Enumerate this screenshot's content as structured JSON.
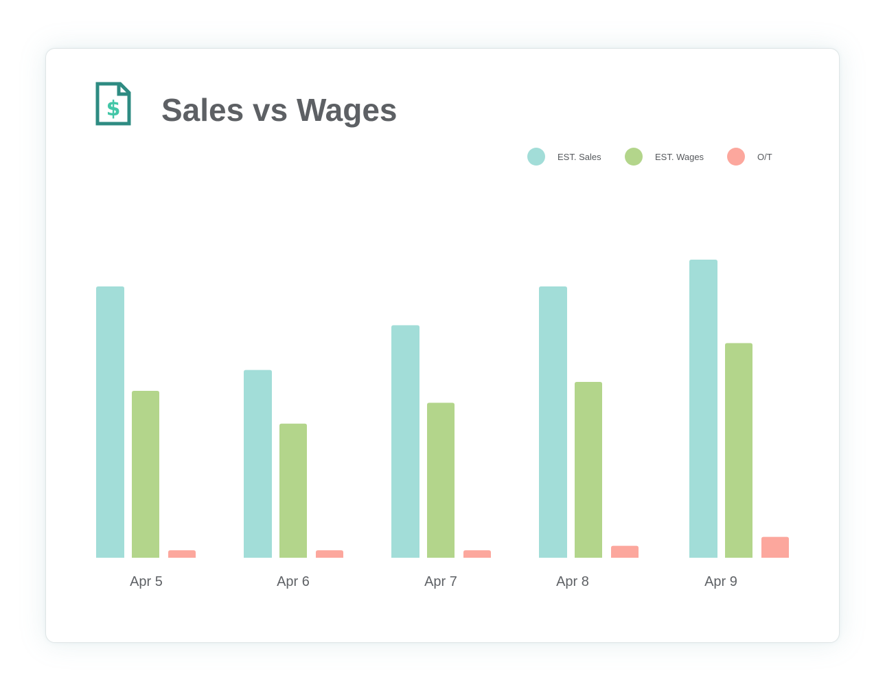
{
  "header": {
    "title": "Sales vs Wages",
    "icon": "dollar-document-icon",
    "icon_color": "#2e8b82",
    "icon_accent": "#42c6a7"
  },
  "legend": {
    "placement": "top-right",
    "items": [
      {
        "label": "EST. Sales",
        "color": "#a2ddd8"
      },
      {
        "label": "EST. Wages",
        "color": "#b3d58b"
      },
      {
        "label": "O/T",
        "color": "#fca79d"
      }
    ]
  },
  "chart_data": {
    "type": "bar",
    "title": "Sales vs Wages",
    "xlabel": "",
    "ylabel": "",
    "grid": false,
    "legend_position": "top-right",
    "categories": [
      "Apr 5",
      "Apr 6",
      "Apr 7",
      "Apr 8",
      "Apr 9"
    ],
    "series": [
      {
        "name": "EST. Sales",
        "color": "#a2ddd8",
        "values": [
          91,
          63,
          78,
          91,
          100
        ]
      },
      {
        "name": "EST. Wages",
        "color": "#b3d58b",
        "values": [
          56,
          45,
          52,
          59,
          72
        ]
      },
      {
        "name": "O/T",
        "color": "#fca79d",
        "values": [
          2.5,
          2.5,
          2.5,
          4,
          7
        ]
      }
    ],
    "ylim": [
      0,
      100
    ]
  }
}
